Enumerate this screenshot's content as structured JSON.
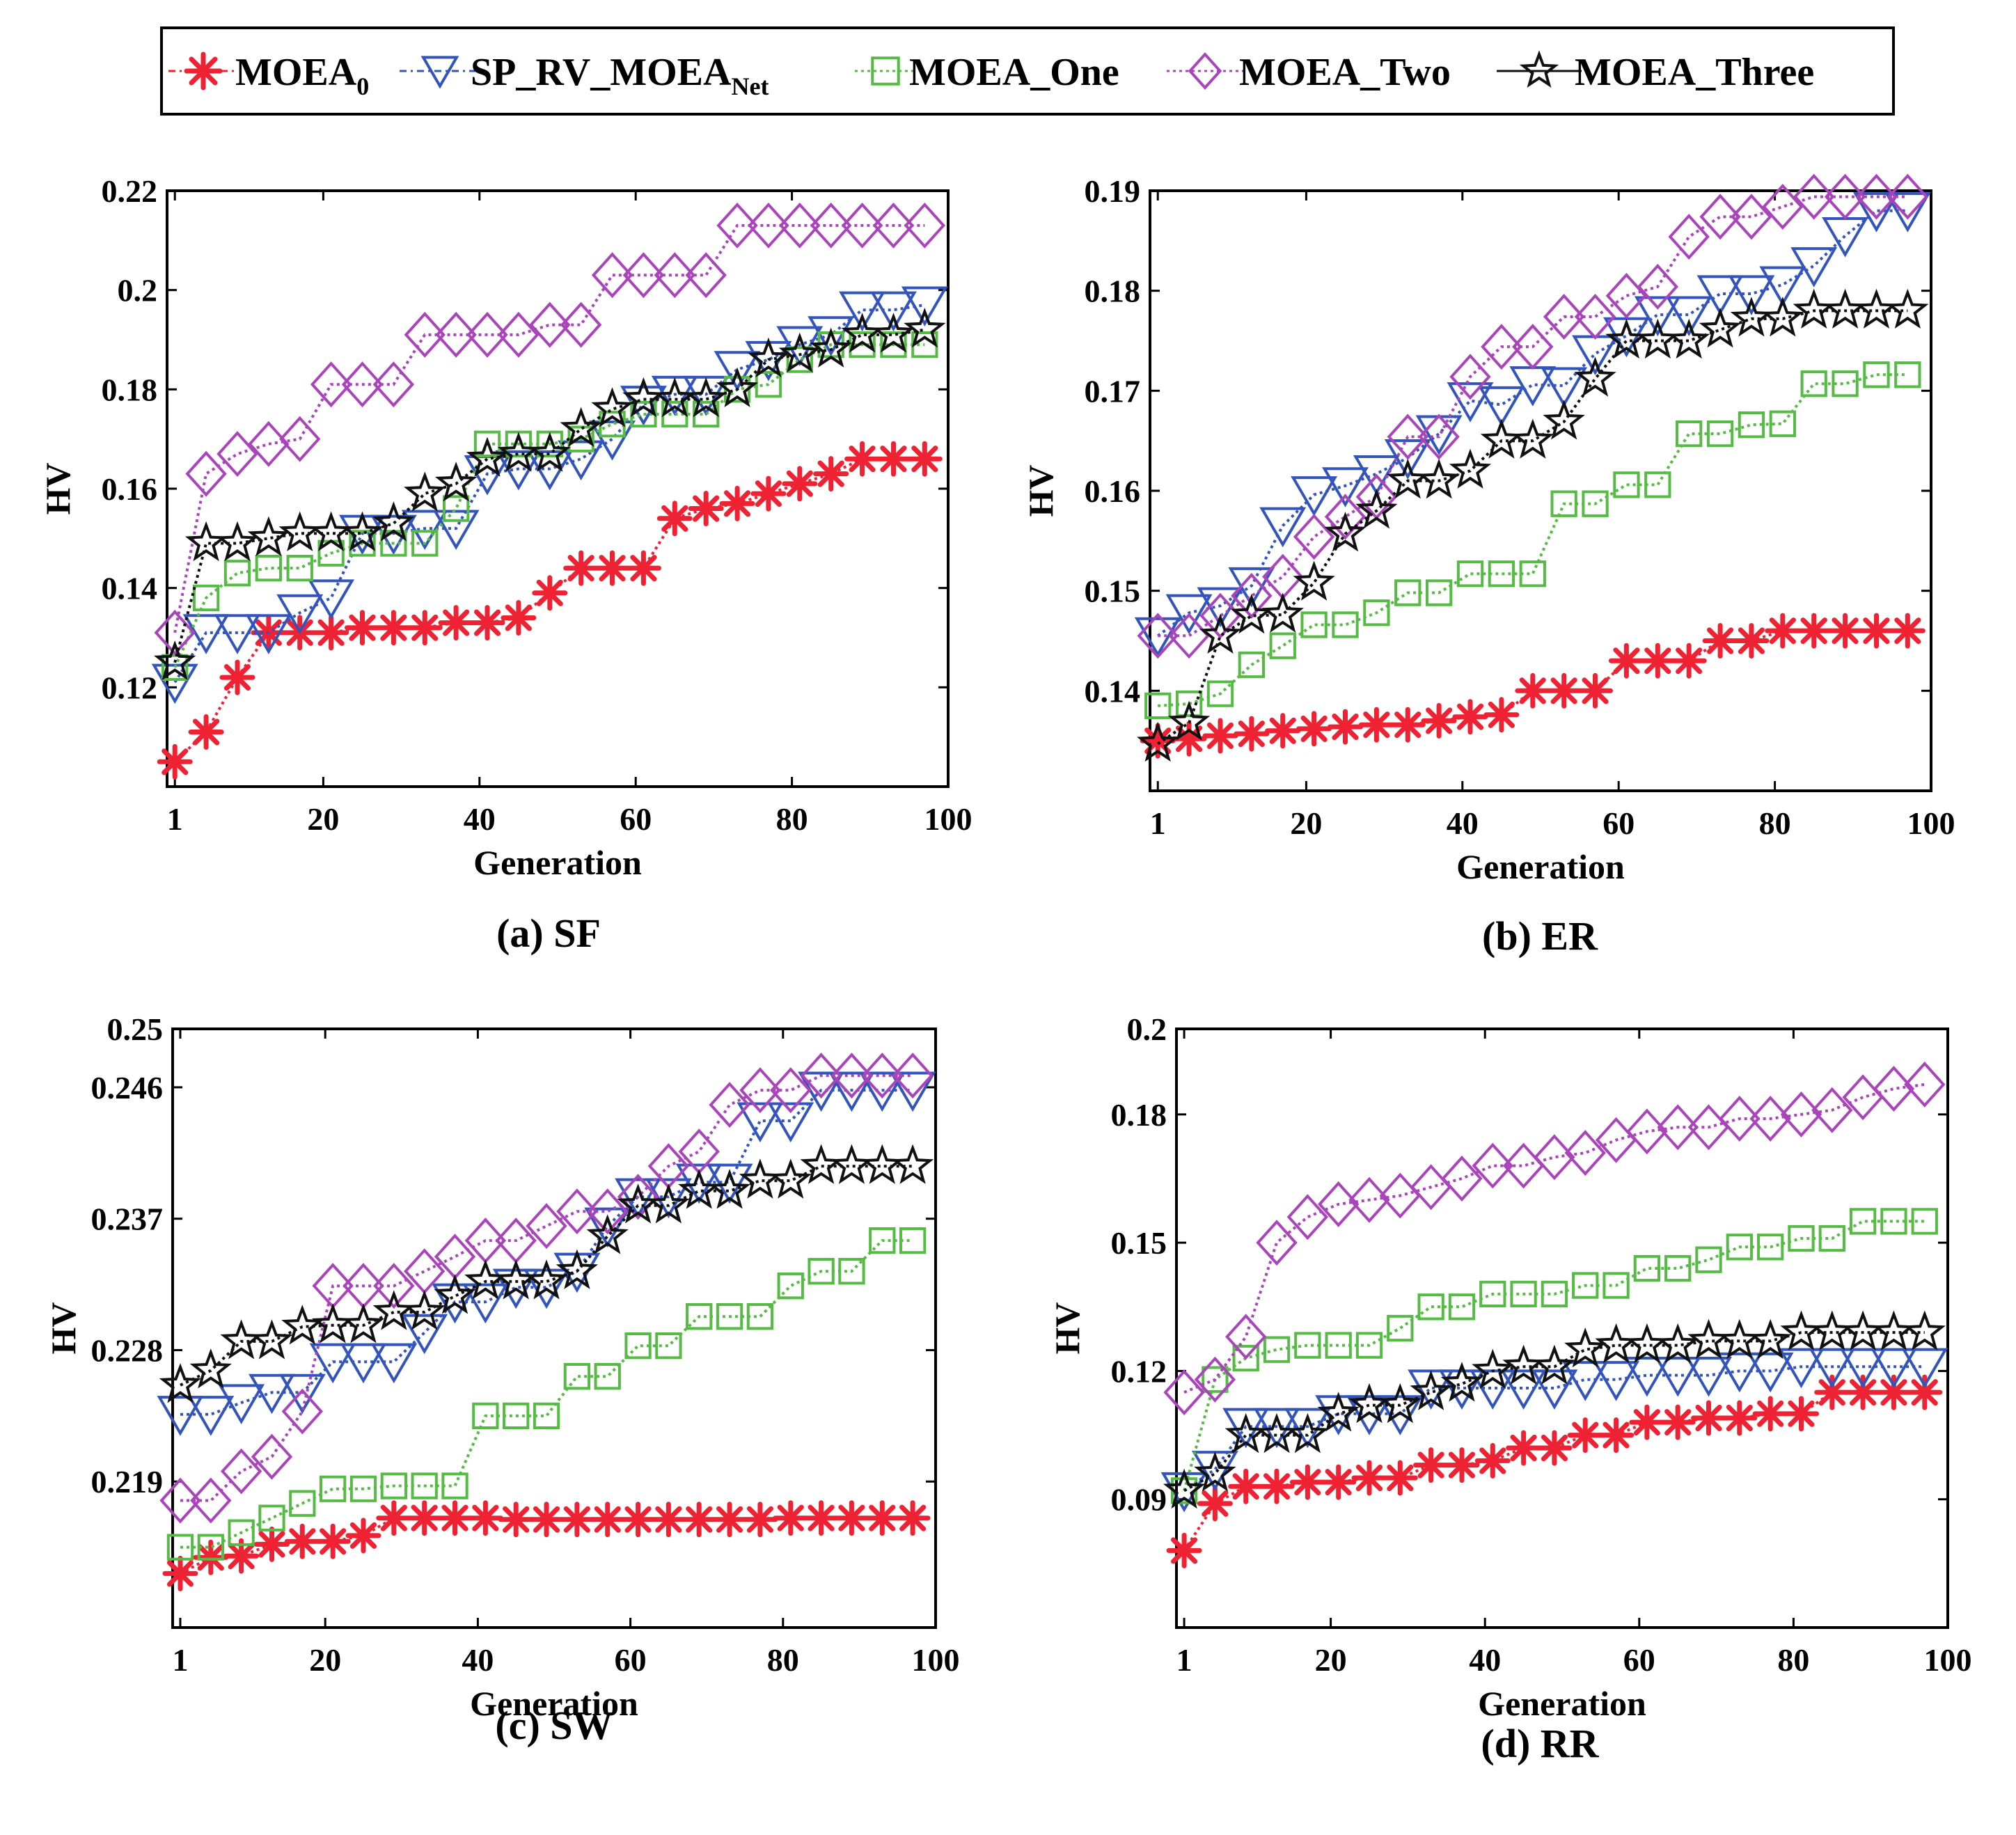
{
  "legend": {
    "entries": [
      {
        "key": "moea0",
        "base": "MOEA",
        "sub": "0",
        "color": "#ee2233",
        "marker": "asterisk",
        "line": "dash-dot"
      },
      {
        "key": "sprv",
        "base": "SP_RV_MOEA",
        "sub": "Net",
        "color": "#3355bb",
        "marker": "triangle-down",
        "line": "dash-dot"
      },
      {
        "key": "one",
        "base": "MOEA_One",
        "sub": "",
        "color": "#55bb44",
        "marker": "square",
        "line": "dotted"
      },
      {
        "key": "two",
        "base": "MOEA_Two",
        "sub": "",
        "color": "#aa44bb",
        "marker": "diamond",
        "line": "dotted"
      },
      {
        "key": "three",
        "base": "MOEA_Three",
        "sub": "",
        "color": "#111111",
        "marker": "star",
        "line": "solid"
      }
    ]
  },
  "chart_data": [
    {
      "type": "line",
      "title": "(a)  SF",
      "xlabel": "Generation",
      "ylabel": "HV",
      "xlim": [
        0,
        100
      ],
      "ylim": [
        0.1,
        0.22
      ],
      "xticks": [
        1,
        20,
        40,
        60,
        80,
        100
      ],
      "yticks": [
        0.12,
        0.14,
        0.16,
        0.18,
        0.2,
        0.22
      ],
      "ytick_labels": [
        "0.12",
        "0.14",
        "0.16",
        "0.18",
        "0.2",
        "0.22"
      ],
      "x": [
        1,
        5,
        9,
        13,
        17,
        21,
        25,
        29,
        33,
        37,
        41,
        45,
        49,
        53,
        57,
        61,
        65,
        69,
        73,
        77,
        81,
        85,
        89,
        93,
        97
      ],
      "series": [
        {
          "name": "MOEA0",
          "values": [
            0.105,
            0.111,
            0.122,
            0.131,
            0.131,
            0.131,
            0.132,
            0.132,
            0.132,
            0.133,
            0.133,
            0.134,
            0.139,
            0.144,
            0.144,
            0.144,
            0.154,
            0.156,
            0.157,
            0.159,
            0.161,
            0.163,
            0.166,
            0.166,
            0.166
          ]
        },
        {
          "name": "SP_RV_MOEANet",
          "values": [
            0.121,
            0.131,
            0.131,
            0.131,
            0.135,
            0.138,
            0.151,
            0.151,
            0.152,
            0.152,
            0.163,
            0.164,
            0.164,
            0.166,
            0.17,
            0.177,
            0.179,
            0.179,
            0.184,
            0.186,
            0.189,
            0.191,
            0.196,
            0.196,
            0.197
          ]
        },
        {
          "name": "MOEA_One",
          "values": [
            0.124,
            0.138,
            0.143,
            0.144,
            0.144,
            0.147,
            0.149,
            0.149,
            0.149,
            0.156,
            0.169,
            0.169,
            0.169,
            0.17,
            0.173,
            0.175,
            0.175,
            0.175,
            0.18,
            0.181,
            0.186,
            0.189,
            0.189,
            0.189,
            0.189
          ]
        },
        {
          "name": "MOEA_Two",
          "values": [
            0.131,
            0.163,
            0.167,
            0.169,
            0.17,
            0.181,
            0.181,
            0.181,
            0.191,
            0.191,
            0.191,
            0.191,
            0.193,
            0.193,
            0.203,
            0.203,
            0.203,
            0.203,
            0.213,
            0.213,
            0.213,
            0.213,
            0.213,
            0.213,
            0.213
          ]
        },
        {
          "name": "MOEA_Three",
          "values": [
            0.125,
            0.149,
            0.149,
            0.15,
            0.151,
            0.151,
            0.151,
            0.153,
            0.159,
            0.161,
            0.166,
            0.167,
            0.167,
            0.172,
            0.176,
            0.178,
            0.178,
            0.178,
            0.18,
            0.186,
            0.187,
            0.188,
            0.191,
            0.191,
            0.192
          ]
        }
      ]
    },
    {
      "type": "line",
      "title": "(b)  ER",
      "xlabel": "Generation",
      "ylabel": "HV",
      "xlim": [
        0,
        100
      ],
      "ylim": [
        0.13,
        0.19
      ],
      "xticks": [
        1,
        20,
        40,
        60,
        80,
        100
      ],
      "yticks": [
        0.14,
        0.15,
        0.16,
        0.17,
        0.18,
        0.19
      ],
      "ytick_labels": [
        "0.14",
        "0.15",
        "0.16",
        "0.17",
        "0.18",
        "0.19"
      ],
      "x": [
        1,
        5,
        9,
        13,
        17,
        21,
        25,
        29,
        33,
        37,
        41,
        45,
        49,
        53,
        57,
        61,
        65,
        69,
        73,
        77,
        81,
        85,
        89,
        93,
        97
      ],
      "series": [
        {
          "name": "MOEA0",
          "values": [
            0.135,
            0.1352,
            0.1355,
            0.1357,
            0.136,
            0.1362,
            0.1364,
            0.1366,
            0.1366,
            0.137,
            0.1374,
            0.1376,
            0.14,
            0.14,
            0.14,
            0.143,
            0.143,
            0.143,
            0.145,
            0.145,
            0.146,
            0.146,
            0.146,
            0.146,
            0.146
          ]
        },
        {
          "name": "SP_RV_MOEANet",
          "values": [
            0.1455,
            0.1478,
            0.1485,
            0.1505,
            0.1565,
            0.1596,
            0.1605,
            0.1617,
            0.1633,
            0.1657,
            0.169,
            0.1686,
            0.1706,
            0.1705,
            0.1737,
            0.1755,
            0.1776,
            0.1776,
            0.1797,
            0.1797,
            0.1806,
            0.1825,
            0.1855,
            0.188,
            0.188
          ]
        },
        {
          "name": "MOEA_One",
          "values": [
            0.1385,
            0.1387,
            0.1397,
            0.1426,
            0.1445,
            0.1466,
            0.1466,
            0.1478,
            0.1498,
            0.1498,
            0.1517,
            0.1517,
            0.1517,
            0.1587,
            0.1587,
            0.1606,
            0.1606,
            0.1657,
            0.1657,
            0.1666,
            0.1667,
            0.1707,
            0.1707,
            0.1716,
            0.1716
          ]
        },
        {
          "name": "MOEA_Two",
          "values": [
            0.1455,
            0.1455,
            0.1475,
            0.1495,
            0.1514,
            0.1554,
            0.1574,
            0.1594,
            0.1654,
            0.1654,
            0.1714,
            0.1744,
            0.1744,
            0.1774,
            0.1774,
            0.1795,
            0.1804,
            0.1854,
            0.1874,
            0.1874,
            0.1884,
            0.1894,
            0.1894,
            0.1894,
            0.1894
          ]
        },
        {
          "name": "MOEA_Three",
          "values": [
            0.1347,
            0.1368,
            0.1455,
            0.1475,
            0.1476,
            0.1508,
            0.1557,
            0.158,
            0.161,
            0.161,
            0.162,
            0.165,
            0.165,
            0.1669,
            0.1712,
            0.175,
            0.175,
            0.175,
            0.1761,
            0.1772,
            0.1772,
            0.178,
            0.178,
            0.178,
            0.178
          ]
        }
      ]
    },
    {
      "type": "line",
      "title": "(c)  SW",
      "xlabel": "Generation",
      "ylabel": "HV",
      "xlim": [
        0,
        100
      ],
      "ylim": [
        0.209,
        0.25
      ],
      "xticks": [
        1,
        20,
        40,
        60,
        80,
        100
      ],
      "yticks": [
        0.219,
        0.228,
        0.237,
        0.246,
        0.25
      ],
      "ytick_labels": [
        "0.219",
        "0.228",
        "0.237",
        "0.246",
        "0.25"
      ],
      "x": [
        1,
        5,
        9,
        13,
        17,
        21,
        25,
        29,
        33,
        37,
        41,
        45,
        49,
        53,
        57,
        61,
        65,
        69,
        73,
        77,
        81,
        85,
        89,
        93,
        97
      ],
      "series": [
        {
          "name": "MOEA0",
          "values": [
            0.2127,
            0.2138,
            0.2139,
            0.2147,
            0.2149,
            0.2149,
            0.2153,
            0.2165,
            0.2165,
            0.2165,
            0.2165,
            0.2164,
            0.2164,
            0.2164,
            0.2164,
            0.2164,
            0.2164,
            0.2164,
            0.2164,
            0.2164,
            0.2165,
            0.2165,
            0.2165,
            0.2165,
            0.2165
          ]
        },
        {
          "name": "SP_RV_MOEANet",
          "values": [
            0.2236,
            0.2236,
            0.2244,
            0.2251,
            0.2251,
            0.2272,
            0.2272,
            0.2272,
            0.2292,
            0.2313,
            0.2313,
            0.2323,
            0.2323,
            0.2334,
            0.2365,
            0.2385,
            0.2385,
            0.2395,
            0.2395,
            0.2437,
            0.2437,
            0.2458,
            0.2458,
            0.2458,
            0.2458
          ]
        },
        {
          "name": "MOEA_One",
          "values": [
            0.2145,
            0.2145,
            0.2155,
            0.2165,
            0.2175,
            0.2185,
            0.2185,
            0.2187,
            0.2187,
            0.2187,
            0.2235,
            0.2235,
            0.2235,
            0.2262,
            0.2262,
            0.2283,
            0.2283,
            0.2303,
            0.2303,
            0.2303,
            0.2324,
            0.2334,
            0.2334,
            0.2355,
            0.2355
          ]
        },
        {
          "name": "MOEA_Two",
          "values": [
            0.2177,
            0.2177,
            0.2197,
            0.2207,
            0.2238,
            0.2324,
            0.2324,
            0.2324,
            0.2334,
            0.2344,
            0.2355,
            0.2355,
            0.2365,
            0.2375,
            0.2375,
            0.2385,
            0.2406,
            0.2416,
            0.2448,
            0.2458,
            0.2458,
            0.2468,
            0.2468,
            0.2468,
            0.2468
          ]
        },
        {
          "name": "MOEA_Three",
          "values": [
            0.2256,
            0.2266,
            0.2286,
            0.2286,
            0.2296,
            0.2297,
            0.2297,
            0.2306,
            0.2306,
            0.2317,
            0.2327,
            0.2327,
            0.2327,
            0.2334,
            0.2358,
            0.2379,
            0.2379,
            0.2389,
            0.2389,
            0.2396,
            0.2396,
            0.2406,
            0.2406,
            0.2406,
            0.2406
          ]
        }
      ]
    },
    {
      "type": "line",
      "title": "(d)  RR",
      "xlabel": "Generation",
      "ylabel": "HV",
      "xlim": [
        0,
        100
      ],
      "ylim": [
        0.06,
        0.2
      ],
      "xticks": [
        1,
        20,
        40,
        60,
        80,
        100
      ],
      "yticks": [
        0.09,
        0.12,
        0.15,
        0.18,
        0.2
      ],
      "ytick_labels": [
        "0.09",
        "0.12",
        "0.15",
        "0.18",
        "0.2"
      ],
      "x": [
        1,
        5,
        9,
        13,
        17,
        21,
        25,
        29,
        33,
        37,
        41,
        45,
        49,
        53,
        57,
        61,
        65,
        69,
        73,
        77,
        81,
        85,
        89,
        93,
        97
      ],
      "series": [
        {
          "name": "MOEA0",
          "values": [
            0.078,
            0.089,
            0.093,
            0.093,
            0.094,
            0.094,
            0.095,
            0.095,
            0.098,
            0.098,
            0.099,
            0.102,
            0.102,
            0.105,
            0.105,
            0.108,
            0.108,
            0.109,
            0.109,
            0.11,
            0.11,
            0.115,
            0.115,
            0.115,
            0.115
          ]
        },
        {
          "name": "SP_RV_MOEANet",
          "values": [
            0.092,
            0.097,
            0.107,
            0.107,
            0.107,
            0.11,
            0.11,
            0.11,
            0.116,
            0.116,
            0.116,
            0.116,
            0.116,
            0.118,
            0.118,
            0.119,
            0.119,
            0.119,
            0.12,
            0.12,
            0.121,
            0.121,
            0.121,
            0.121,
            0.121
          ]
        },
        {
          "name": "MOEA_One",
          "values": [
            0.092,
            0.118,
            0.123,
            0.125,
            0.126,
            0.126,
            0.126,
            0.13,
            0.135,
            0.135,
            0.138,
            0.138,
            0.138,
            0.14,
            0.14,
            0.144,
            0.144,
            0.146,
            0.149,
            0.149,
            0.151,
            0.151,
            0.155,
            0.155,
            0.155
          ]
        },
        {
          "name": "MOEA_Two",
          "values": [
            0.115,
            0.118,
            0.128,
            0.15,
            0.156,
            0.159,
            0.16,
            0.161,
            0.163,
            0.165,
            0.168,
            0.168,
            0.17,
            0.171,
            0.174,
            0.176,
            0.177,
            0.177,
            0.179,
            0.179,
            0.18,
            0.181,
            0.184,
            0.186,
            0.187
          ]
        },
        {
          "name": "MOEA_Three",
          "values": [
            0.092,
            0.096,
            0.105,
            0.105,
            0.105,
            0.11,
            0.112,
            0.112,
            0.115,
            0.117,
            0.12,
            0.121,
            0.121,
            0.125,
            0.126,
            0.126,
            0.126,
            0.127,
            0.127,
            0.127,
            0.129,
            0.129,
            0.129,
            0.129,
            0.129
          ]
        }
      ]
    }
  ]
}
